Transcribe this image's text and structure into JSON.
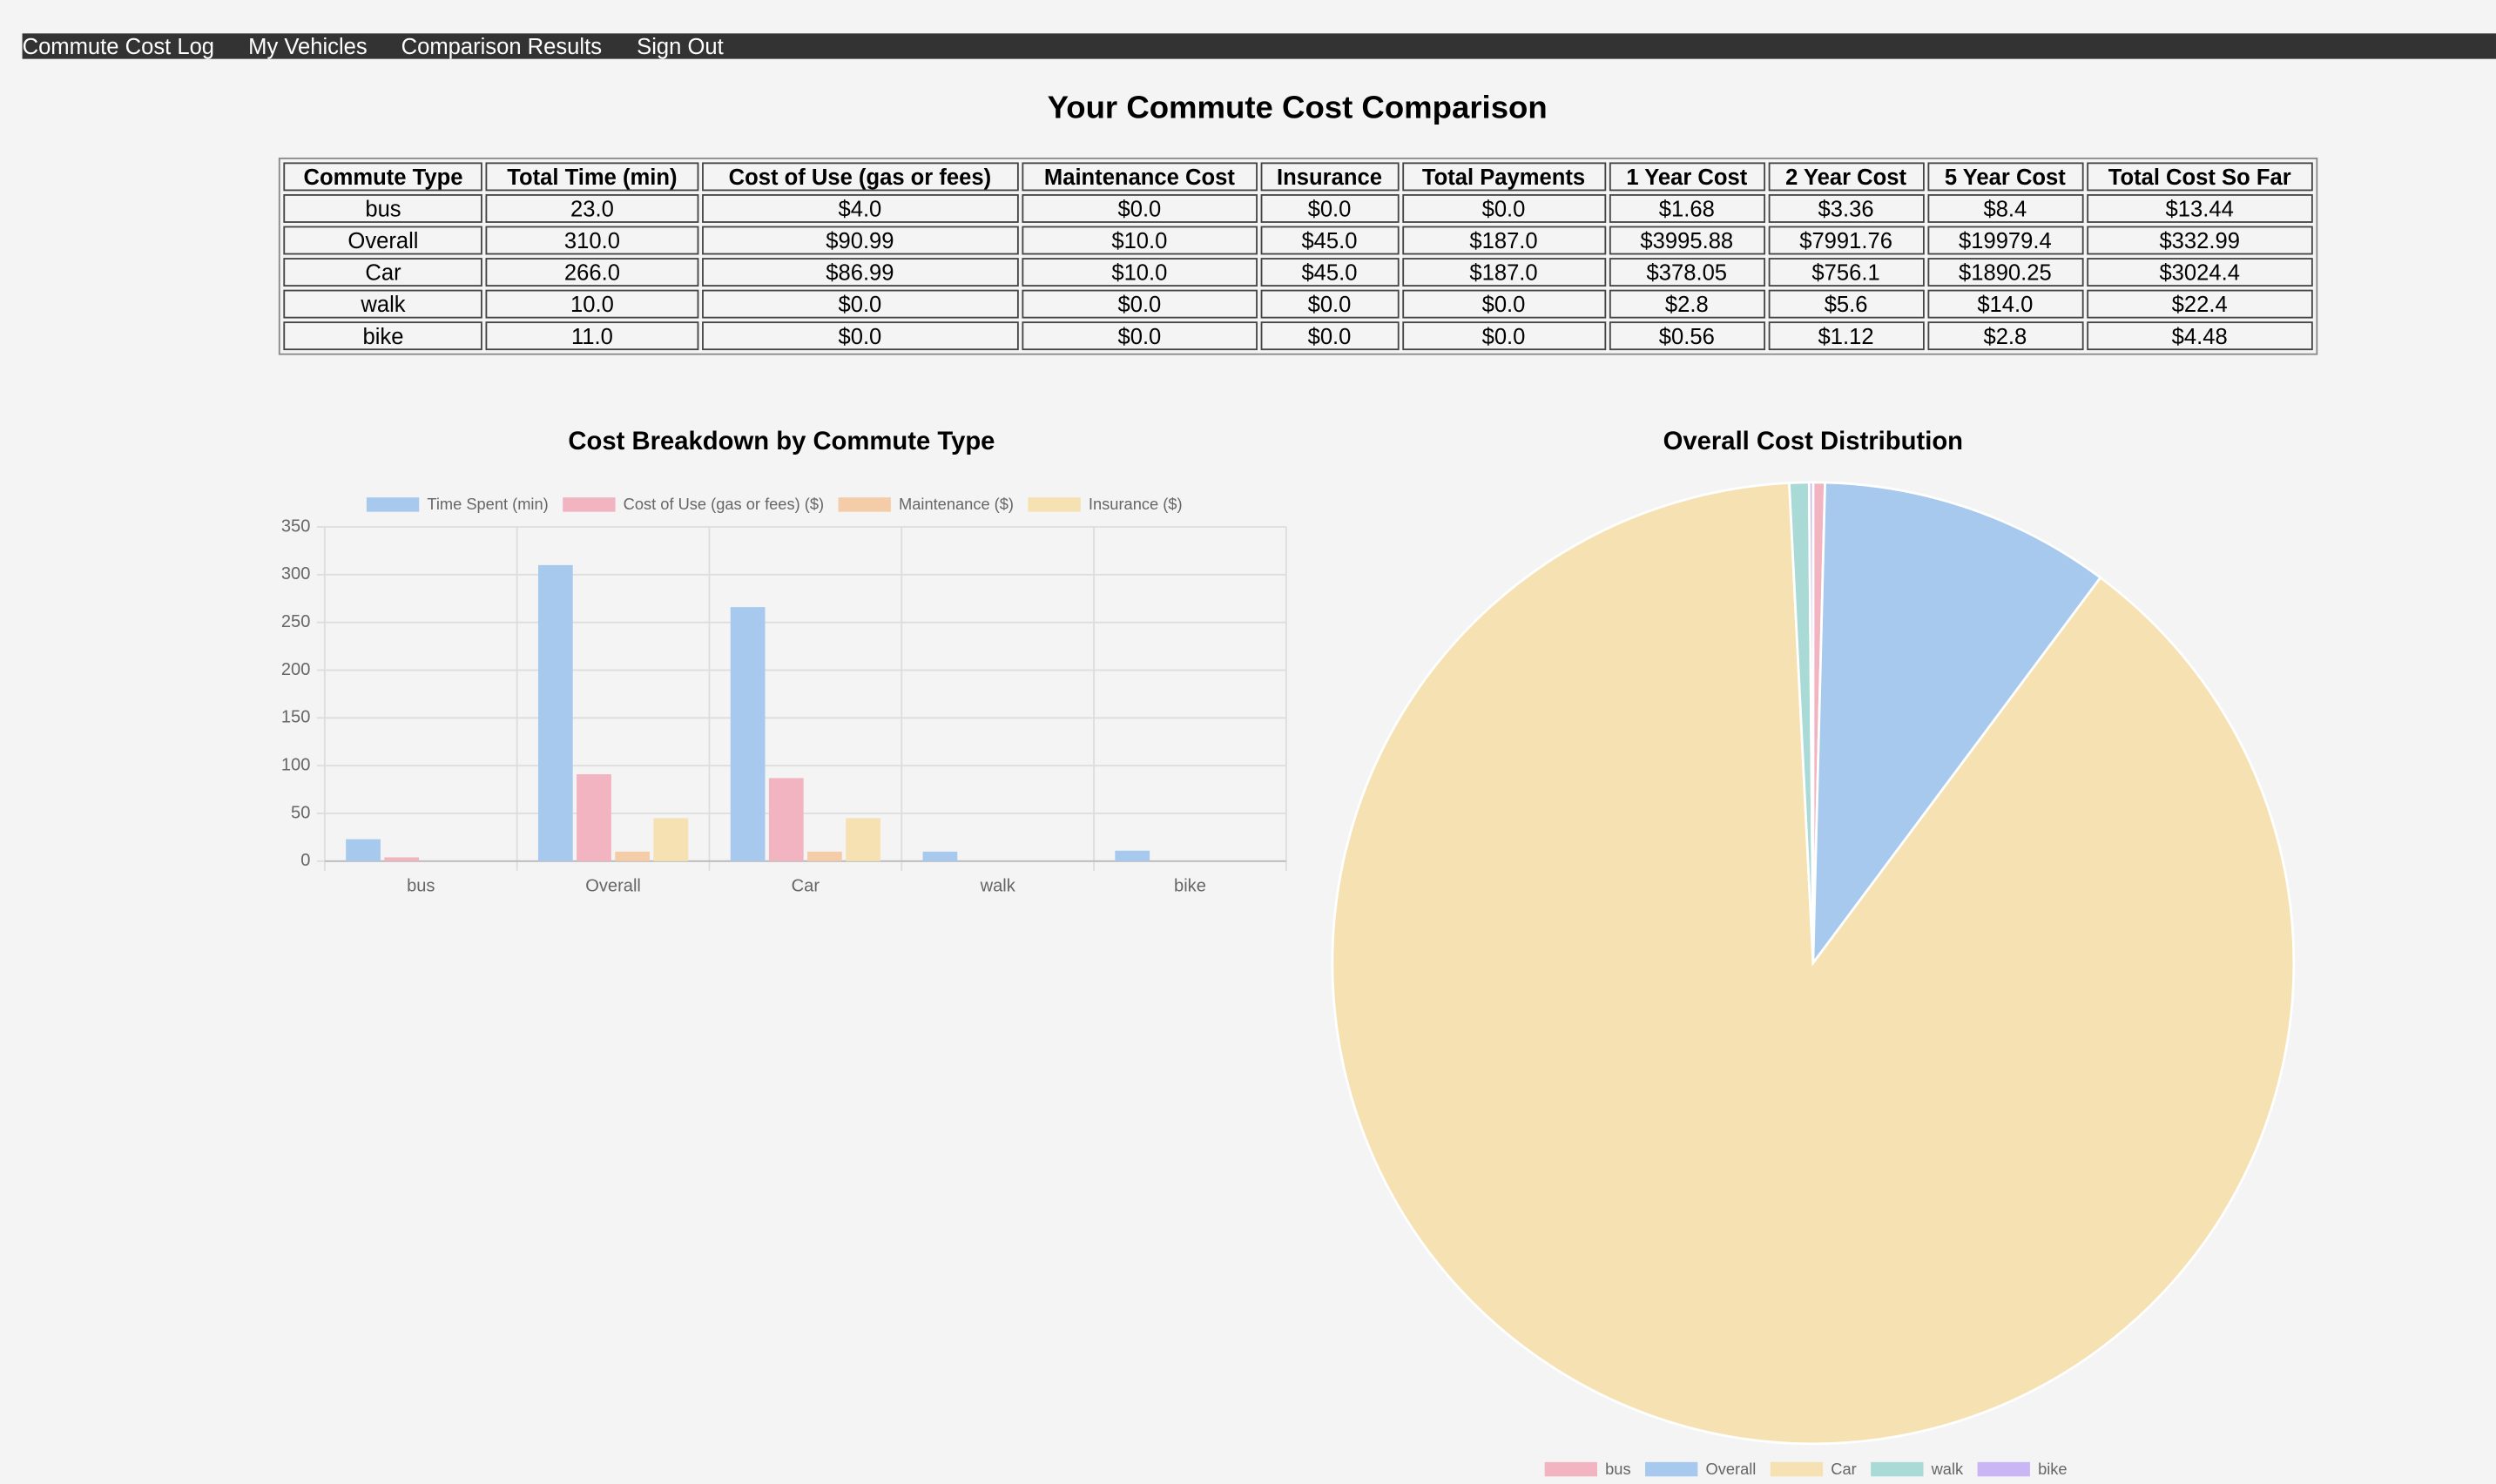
{
  "nav": {
    "links": [
      "Commute Cost Log",
      "My Vehicles",
      "Comparison Results",
      "Sign Out"
    ]
  },
  "title": "Your Commute Cost Comparison",
  "table": {
    "headers": [
      "Commute Type",
      "Total Time (min)",
      "Cost of Use (gas or fees)",
      "Maintenance Cost",
      "Insurance",
      "Total Payments",
      "1 Year Cost",
      "2 Year Cost",
      "5 Year Cost",
      "Total Cost So Far"
    ],
    "rows": [
      [
        "bus",
        "23.0",
        "$4.0",
        "$0.0",
        "$0.0",
        "$0.0",
        "$1.68",
        "$3.36",
        "$8.4",
        "$13.44"
      ],
      [
        "Overall",
        "310.0",
        "$90.99",
        "$10.0",
        "$45.0",
        "$187.0",
        "$3995.88",
        "$7991.76",
        "$19979.4",
        "$332.99"
      ],
      [
        "Car",
        "266.0",
        "$86.99",
        "$10.0",
        "$45.0",
        "$187.0",
        "$378.05",
        "$756.1",
        "$1890.25",
        "$3024.4"
      ],
      [
        "walk",
        "10.0",
        "$0.0",
        "$0.0",
        "$0.0",
        "$0.0",
        "$2.8",
        "$5.6",
        "$14.0",
        "$22.4"
      ],
      [
        "bike",
        "11.0",
        "$0.0",
        "$0.0",
        "$0.0",
        "$0.0",
        "$0.56",
        "$1.12",
        "$2.8",
        "$4.48"
      ]
    ]
  },
  "chart_data": [
    {
      "type": "bar",
      "title": "Cost Breakdown by Commute Type",
      "categories": [
        "bus",
        "Overall",
        "Car",
        "walk",
        "bike"
      ],
      "series": [
        {
          "name": "Time Spent (min)",
          "color": "#a7c9ee",
          "values": [
            23,
            310,
            266,
            10,
            11
          ]
        },
        {
          "name": "Cost of Use (gas or fees) ($)",
          "color": "#f1b4c0",
          "values": [
            4,
            90.99,
            86.99,
            0,
            0
          ]
        },
        {
          "name": "Maintenance ($)",
          "color": "#f4cca7",
          "values": [
            0,
            10,
            10,
            0,
            0
          ]
        },
        {
          "name": "Insurance ($)",
          "color": "#f5e1b1",
          "values": [
            0,
            45,
            45,
            0,
            0
          ]
        }
      ],
      "ylim": [
        0,
        350
      ],
      "yticks": [
        0,
        50,
        100,
        150,
        200,
        250,
        300,
        350
      ],
      "grid": true,
      "legend": "top"
    },
    {
      "type": "pie",
      "title": "Overall Cost Distribution",
      "categories": [
        "bus",
        "Overall",
        "Car",
        "walk",
        "bike"
      ],
      "values": [
        13.44,
        332.99,
        3024.4,
        22.4,
        4.48
      ],
      "colors": [
        "#f2b4c1",
        "#a7c9ee",
        "#f5e1b1",
        "#a9dad5",
        "#cab6f5"
      ],
      "legend": "bottom"
    }
  ]
}
